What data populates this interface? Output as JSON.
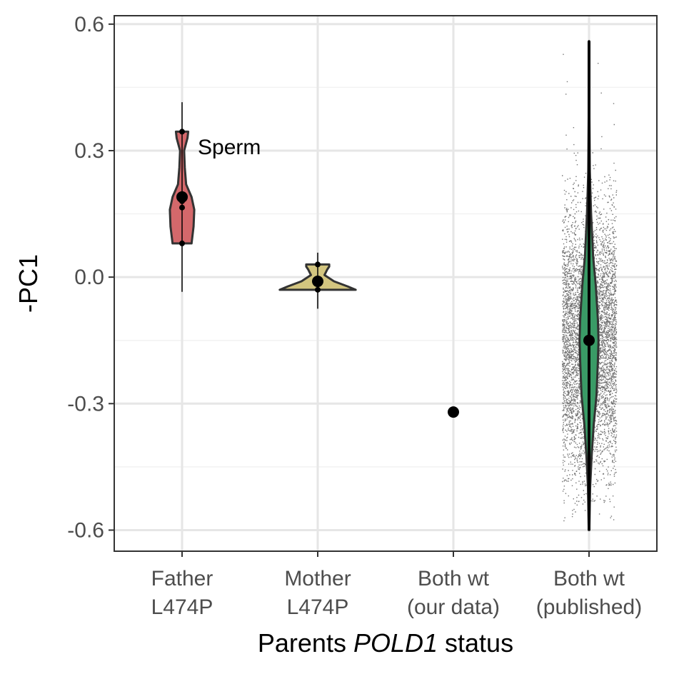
{
  "chart_data": {
    "type": "violin",
    "ylabel": "-PC1",
    "xlabel": {
      "prefix": "Parents ",
      "gene": "POLD1",
      "suffix": " status"
    },
    "ylim": [
      -0.65,
      0.62
    ],
    "yticks": [
      0.6,
      0.3,
      0.0,
      -0.3,
      -0.6
    ],
    "ytick_labels": [
      "0.6",
      "0.3",
      "0.0",
      "-0.3",
      "-0.6"
    ],
    "grid": true,
    "categories": [
      {
        "line1": "Father",
        "line2": "L474P",
        "color": "#d4686b",
        "points": [
          0.345,
          0.19,
          0.18,
          0.165,
          0.08
        ],
        "mean": 0.19,
        "range": [
          -0.035,
          0.415
        ],
        "violin": {
          "ymin": 0.08,
          "ymax": 0.345,
          "profile": [
            [
              0.08,
              0.07
            ],
            [
              0.12,
              0.085
            ],
            [
              0.16,
              0.09
            ],
            [
              0.19,
              0.07
            ],
            [
              0.22,
              0.03
            ],
            [
              0.26,
              0.02
            ],
            [
              0.3,
              0.015
            ],
            [
              0.33,
              0.04
            ],
            [
              0.345,
              0.045
            ]
          ]
        },
        "annotation": "Sperm"
      },
      {
        "line1": "Mother",
        "line2": "L474P",
        "color": "#d3c57f",
        "points": [
          0.03,
          -0.01,
          -0.03
        ],
        "mean": -0.01,
        "range": [
          -0.075,
          0.058
        ],
        "violin": {
          "ymin": -0.03,
          "ymax": 0.03,
          "profile": [
            [
              -0.03,
              0.28
            ],
            [
              -0.022,
              0.22
            ],
            [
              -0.01,
              0.12
            ],
            [
              0.005,
              0.05
            ],
            [
              0.018,
              0.07
            ],
            [
              0.025,
              0.085
            ],
            [
              0.03,
              0.085
            ]
          ]
        }
      },
      {
        "line1": "Both wt",
        "line2": "(our data)",
        "color": "#000000",
        "points": [
          -0.32
        ],
        "mean": -0.32
      },
      {
        "line1": "Both wt",
        "line2": "(published)",
        "color": "#3a9b66",
        "mean": -0.15,
        "range": [
          -0.6,
          0.56
        ],
        "scatter": {
          "n": 6500,
          "mean": -0.155,
          "sd": 0.155,
          "xspread": 0.4,
          "ymin": -0.58,
          "ymax": 0.56
        },
        "violin": {
          "ymin": -0.6,
          "ymax": 0.56,
          "profile": [
            [
              -0.6,
              0.002
            ],
            [
              -0.5,
              0.008
            ],
            [
              -0.42,
              0.02
            ],
            [
              -0.35,
              0.035
            ],
            [
              -0.28,
              0.055
            ],
            [
              -0.2,
              0.065
            ],
            [
              -0.15,
              0.07
            ],
            [
              -0.1,
              0.065
            ],
            [
              -0.02,
              0.05
            ],
            [
              0.05,
              0.03
            ],
            [
              0.15,
              0.015
            ],
            [
              0.25,
              0.006
            ],
            [
              0.4,
              0.002
            ],
            [
              0.56,
              0.0
            ]
          ]
        }
      }
    ]
  }
}
